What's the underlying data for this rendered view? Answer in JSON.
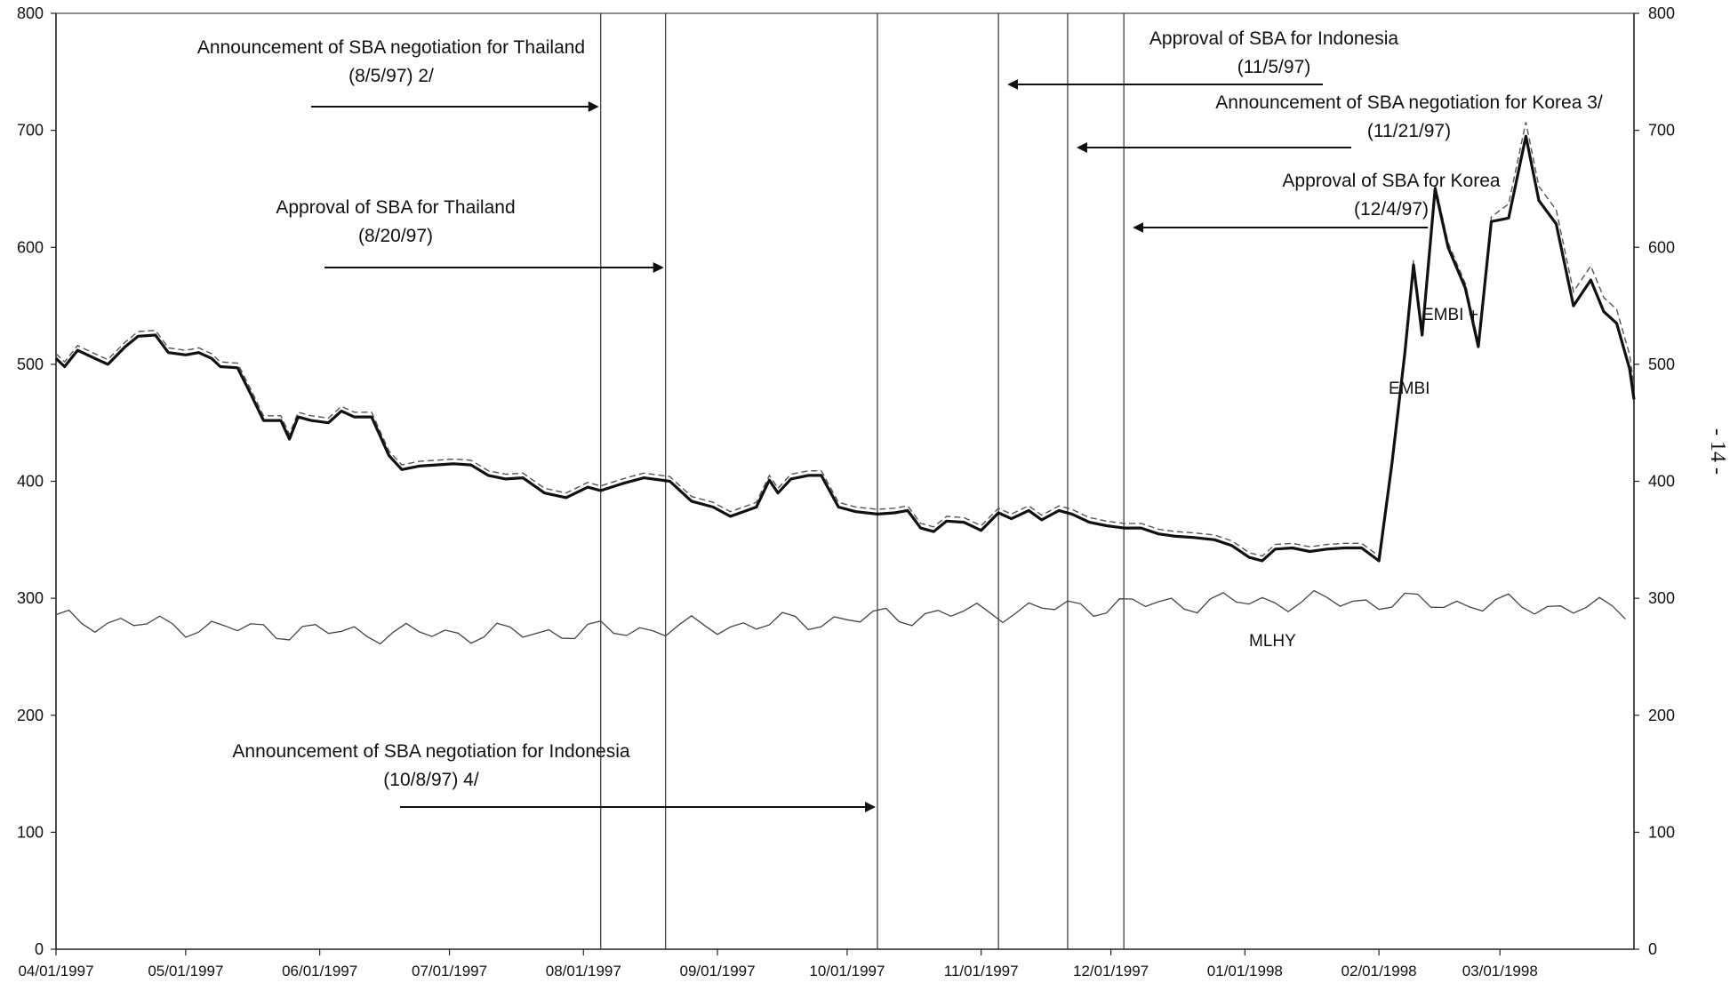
{
  "chart_data": {
    "type": "line",
    "ylim": [
      0,
      800
    ],
    "yticks_left": [
      "0",
      "100",
      "200",
      "300",
      "400",
      "500",
      "600",
      "700",
      "800"
    ],
    "yticks_right": [
      "0",
      "100",
      "200",
      "300",
      "400",
      "500",
      "600",
      "700",
      "800"
    ],
    "x_tick_labels": [
      "04/01/1997",
      "05/01/1997",
      "06/01/1997",
      "07/01/1997",
      "08/01/1997",
      "09/01/1997",
      "10/01/1997",
      "11/01/1997",
      "12/01/1997",
      "01/01/1998",
      "02/01/1998",
      "03/01/1998"
    ],
    "x_range": [
      "1997-04-01",
      "1998-04-01"
    ],
    "grid": false,
    "series": [
      {
        "name": "EMBI",
        "style": "thick-solid",
        "color": "#111111",
        "points": [
          [
            "1997-04-01",
            505
          ],
          [
            "1997-04-03",
            498
          ],
          [
            "1997-04-06",
            512
          ],
          [
            "1997-04-10",
            505
          ],
          [
            "1997-04-13",
            500
          ],
          [
            "1997-04-17",
            515
          ],
          [
            "1997-04-20",
            524
          ],
          [
            "1997-04-24",
            525
          ],
          [
            "1997-04-27",
            510
          ],
          [
            "1997-05-01",
            508
          ],
          [
            "1997-05-04",
            510
          ],
          [
            "1997-05-07",
            505
          ],
          [
            "1997-05-09",
            498
          ],
          [
            "1997-05-13",
            497
          ],
          [
            "1997-05-16",
            475
          ],
          [
            "1997-05-19",
            452
          ],
          [
            "1997-05-23",
            452
          ],
          [
            "1997-05-25",
            436
          ],
          [
            "1997-05-27",
            455
          ],
          [
            "1997-05-30",
            452
          ],
          [
            "1997-06-03",
            450
          ],
          [
            "1997-06-06",
            460
          ],
          [
            "1997-06-09",
            455
          ],
          [
            "1997-06-13",
            455
          ],
          [
            "1997-06-17",
            422
          ],
          [
            "1997-06-20",
            410
          ],
          [
            "1997-06-24",
            413
          ],
          [
            "1997-06-28",
            414
          ],
          [
            "1997-07-02",
            415
          ],
          [
            "1997-07-06",
            414
          ],
          [
            "1997-07-10",
            405
          ],
          [
            "1997-07-14",
            402
          ],
          [
            "1997-07-18",
            403
          ],
          [
            "1997-07-23",
            390
          ],
          [
            "1997-07-28",
            386
          ],
          [
            "1997-08-02",
            395
          ],
          [
            "1997-08-05",
            392
          ],
          [
            "1997-08-10",
            398
          ],
          [
            "1997-08-15",
            403
          ],
          [
            "1997-08-21",
            400
          ],
          [
            "1997-08-26",
            383
          ],
          [
            "1997-08-31",
            378
          ],
          [
            "1997-09-04",
            370
          ],
          [
            "1997-09-10",
            378
          ],
          [
            "1997-09-13",
            401
          ],
          [
            "1997-09-15",
            390
          ],
          [
            "1997-09-18",
            402
          ],
          [
            "1997-09-22",
            405
          ],
          [
            "1997-09-25",
            405
          ],
          [
            "1997-09-29",
            378
          ],
          [
            "1997-10-03",
            374
          ],
          [
            "1997-10-08",
            372
          ],
          [
            "1997-10-12",
            373
          ],
          [
            "1997-10-15",
            375
          ],
          [
            "1997-10-18",
            360
          ],
          [
            "1997-10-21",
            357
          ],
          [
            "1997-10-24",
            366
          ],
          [
            "1997-10-28",
            365
          ],
          [
            "1997-11-01",
            358
          ],
          [
            "1997-11-05",
            373
          ],
          [
            "1997-11-08",
            368
          ],
          [
            "1997-11-12",
            375
          ],
          [
            "1997-11-15",
            367
          ],
          [
            "1997-11-19",
            375
          ],
          [
            "1997-11-22",
            372
          ],
          [
            "1997-11-26",
            365
          ],
          [
            "1997-11-30",
            362
          ],
          [
            "1997-12-04",
            360
          ],
          [
            "1997-12-08",
            360
          ],
          [
            "1997-12-12",
            355
          ],
          [
            "1997-12-16",
            353
          ],
          [
            "1997-12-20",
            352
          ],
          [
            "1997-12-25",
            350
          ],
          [
            "1997-12-29",
            345
          ],
          [
            "1998-01-02",
            335
          ],
          [
            "1998-01-05",
            332
          ],
          [
            "1998-01-08",
            342
          ],
          [
            "1998-01-12",
            343
          ],
          [
            "1998-01-16",
            340
          ],
          [
            "1998-01-20",
            342
          ],
          [
            "1998-01-24",
            343
          ],
          [
            "1998-01-28",
            343
          ],
          [
            "1998-02-01",
            332
          ],
          [
            "1998-02-04",
            415
          ],
          [
            "1998-02-07",
            510
          ],
          [
            "1998-02-09",
            585
          ],
          [
            "1998-02-11",
            525
          ],
          [
            "1998-02-14",
            650
          ],
          [
            "1998-02-17",
            600
          ],
          [
            "1998-02-21",
            565
          ],
          [
            "1998-02-24",
            515
          ],
          [
            "1998-02-27",
            622
          ],
          [
            "1998-03-03",
            625
          ],
          [
            "1998-03-07",
            695
          ],
          [
            "1998-03-10",
            640
          ],
          [
            "1998-03-14",
            620
          ],
          [
            "1998-03-18",
            550
          ],
          [
            "1998-03-22",
            572
          ],
          [
            "1998-03-25",
            545
          ],
          [
            "1998-03-28",
            535
          ],
          [
            "1998-03-31",
            496
          ],
          [
            "1998-04-01",
            470
          ]
        ]
      }
    ],
    "labels": {
      "embi_plus": "EMBI +",
      "embi": "EMBI",
      "mlhy": "MLHY"
    },
    "annotations": [
      {
        "id": "thai-announce",
        "line1": "Announcement of SBA negotiation for Thailand",
        "line2": "(8/5/97) 2/",
        "event_date": "1997-08-05"
      },
      {
        "id": "thai-approval",
        "line1": "Approval of SBA for Thailand",
        "line2": "(8/20/97)",
        "event_date": "1997-08-20"
      },
      {
        "id": "indo-announce",
        "line1": "Announcement of SBA negotiation for Indonesia",
        "line2": "(10/8/97) 4/",
        "event_date": "1997-10-08"
      },
      {
        "id": "indo-approval",
        "line1": "Approval of SBA for Indonesia",
        "line2": "(11/5/97)",
        "event_date": "1997-11-05"
      },
      {
        "id": "korea-announce",
        "line1": "Announcement of SBA negotiation for Korea 3/",
        "line2": "(11/21/97)",
        "event_date": "1997-11-21"
      },
      {
        "id": "korea-approval",
        "line1": "Approval of SBA for Korea",
        "line2": "(12/4/97)",
        "event_date": "1997-12-04"
      }
    ],
    "page_number": "- 14 -"
  }
}
